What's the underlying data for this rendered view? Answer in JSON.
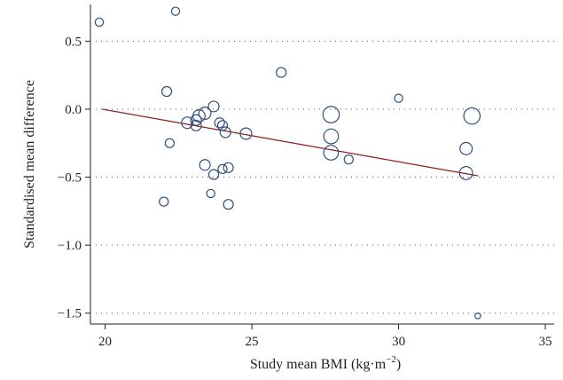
{
  "chart_data": {
    "type": "scatter",
    "title": "",
    "xlabel": "Study mean BMI (kg·m",
    "xlabel_sup": "−2",
    "xlabel_close": ")",
    "ylabel": "Standardised mean difference",
    "xlim": [
      19.5,
      35.3
    ],
    "ylim": [
      -1.58,
      0.77
    ],
    "x_ticks": [
      20,
      25,
      30,
      35
    ],
    "x_tick_labels": [
      "20",
      "25",
      "30",
      "35"
    ],
    "y_ticks": [
      0.5,
      0.0,
      -0.5,
      -1.0,
      -1.5
    ],
    "y_tick_labels": [
      "0.5",
      "0.0",
      "−0.5",
      "−1.0",
      "−1.5"
    ],
    "grid": "horizontal dotted",
    "colors": {
      "points": "#2f4f7f",
      "fit_line": "#8b1c1c",
      "axes": "#231f20"
    },
    "points": [
      {
        "x": 19.8,
        "y": 0.64,
        "weight": 1
      },
      {
        "x": 22.4,
        "y": 0.72,
        "weight": 1
      },
      {
        "x": 22.1,
        "y": 0.13,
        "weight": 1.2
      },
      {
        "x": 26.0,
        "y": 0.27,
        "weight": 1.2
      },
      {
        "x": 30.0,
        "y": 0.08,
        "weight": 1
      },
      {
        "x": 32.5,
        "y": -0.05,
        "weight": 2
      },
      {
        "x": 27.7,
        "y": -0.04,
        "weight": 2
      },
      {
        "x": 23.7,
        "y": 0.02,
        "weight": 1.3
      },
      {
        "x": 23.4,
        "y": -0.03,
        "weight": 1.5
      },
      {
        "x": 23.2,
        "y": -0.05,
        "weight": 1.5
      },
      {
        "x": 22.8,
        "y": -0.1,
        "weight": 1.4
      },
      {
        "x": 23.1,
        "y": -0.08,
        "weight": 1.3
      },
      {
        "x": 23.1,
        "y": -0.12,
        "weight": 1.3
      },
      {
        "x": 23.9,
        "y": -0.1,
        "weight": 1.2
      },
      {
        "x": 24.0,
        "y": -0.12,
        "weight": 1.2
      },
      {
        "x": 24.1,
        "y": -0.17,
        "weight": 1.3
      },
      {
        "x": 24.8,
        "y": -0.18,
        "weight": 1.4
      },
      {
        "x": 27.7,
        "y": -0.2,
        "weight": 1.8
      },
      {
        "x": 22.2,
        "y": -0.25,
        "weight": 1.1
      },
      {
        "x": 32.3,
        "y": -0.29,
        "weight": 1.5
      },
      {
        "x": 27.7,
        "y": -0.32,
        "weight": 1.8
      },
      {
        "x": 28.3,
        "y": -0.37,
        "weight": 1.1
      },
      {
        "x": 23.4,
        "y": -0.41,
        "weight": 1.3
      },
      {
        "x": 24.2,
        "y": -0.43,
        "weight": 1.2
      },
      {
        "x": 24.0,
        "y": -0.44,
        "weight": 1.1
      },
      {
        "x": 23.7,
        "y": -0.48,
        "weight": 1.2
      },
      {
        "x": 32.3,
        "y": -0.47,
        "weight": 1.6
      },
      {
        "x": 23.6,
        "y": -0.62,
        "weight": 1
      },
      {
        "x": 22.0,
        "y": -0.68,
        "weight": 1.1
      },
      {
        "x": 24.2,
        "y": -0.7,
        "weight": 1.2
      },
      {
        "x": 32.7,
        "y": -1.52,
        "weight": 0.7
      }
    ],
    "fit_line": {
      "x": [
        19.9,
        32.7
      ],
      "y": [
        0.0,
        -0.49
      ]
    }
  }
}
